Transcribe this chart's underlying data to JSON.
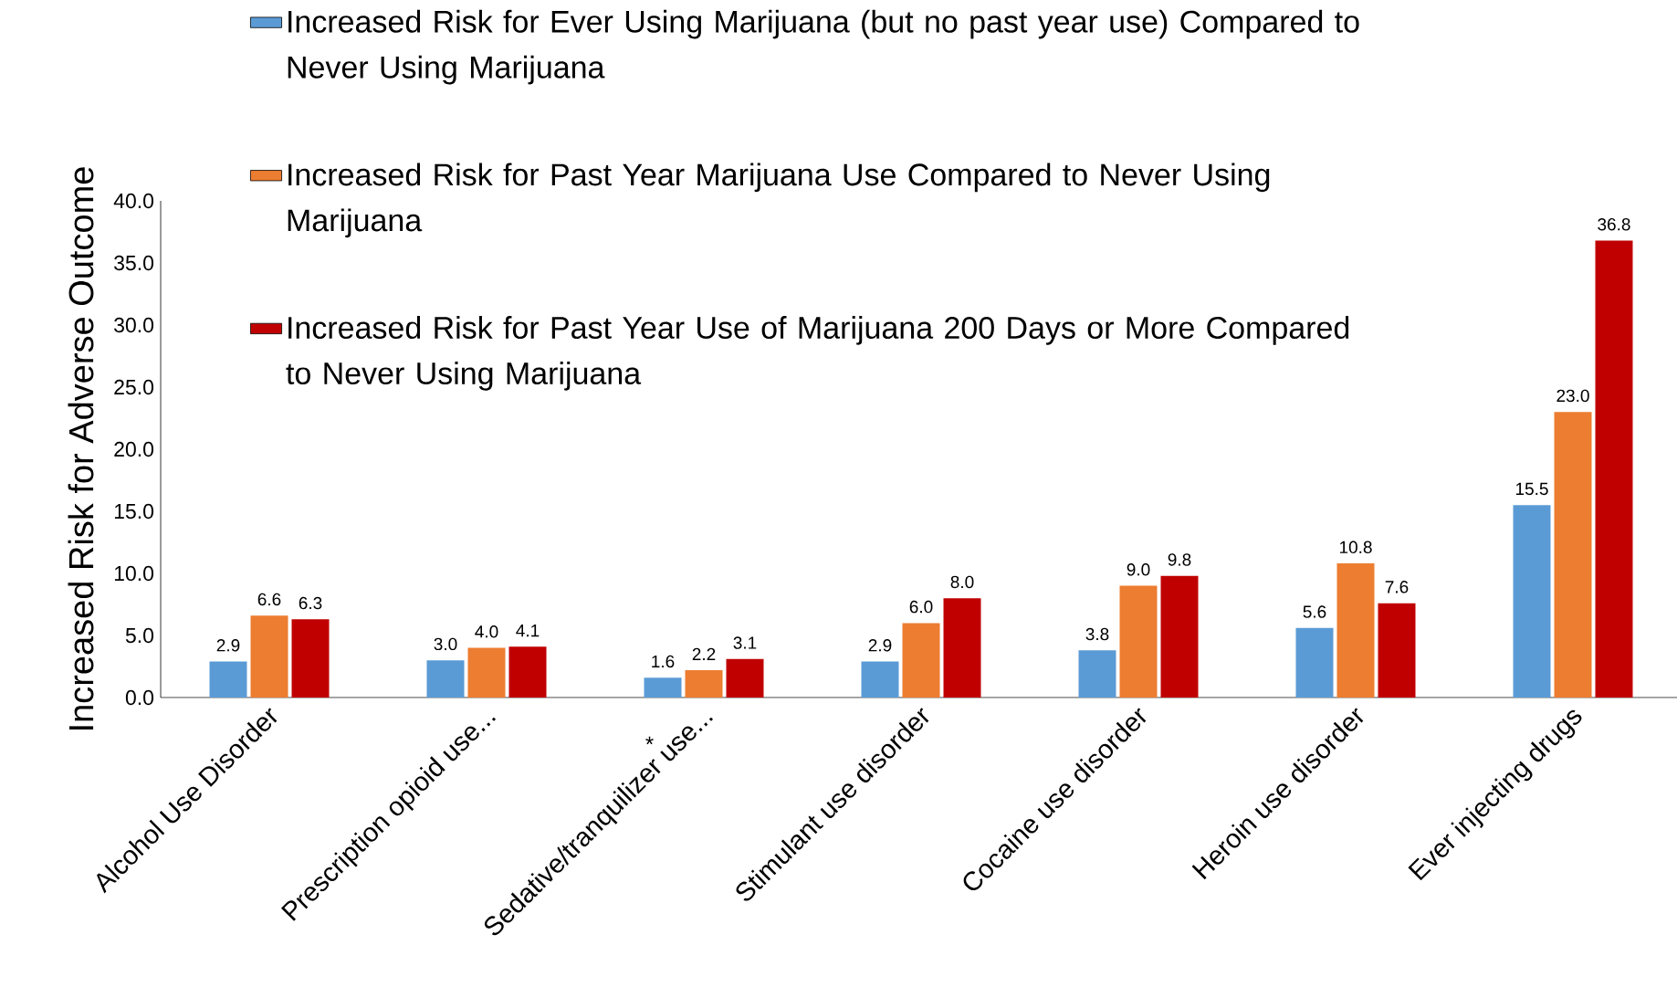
{
  "chart_data": {
    "type": "bar",
    "ylabel": "Increased Risk for Adverse Outcome",
    "categories": [
      "Alcohol Use Disorder",
      "Prescription opioid use...",
      "Sedative/tranquilizer use...",
      "Stimulant use disorder",
      "Cocaine use disorder",
      "Heroin use disorder",
      "Ever injecting drugs"
    ],
    "series": [
      {
        "name": "Increased Risk for Ever Using Marijuana (but no past year use) Compared to Never Using Marijuana",
        "color": "#5b9bd5",
        "values": [
          2.9,
          3.0,
          1.6,
          2.9,
          3.8,
          5.6,
          15.5
        ],
        "value_labels": [
          "2.9",
          "3.0",
          "1.6",
          "2.9",
          "3.8",
          "5.6",
          "15.5"
        ]
      },
      {
        "name": "Increased Risk for Past Year Marijuana Use Compared to Never Using Marijuana",
        "color": "#ed7d31",
        "values": [
          6.6,
          4.0,
          2.2,
          6.0,
          9.0,
          10.8,
          23.0
        ],
        "value_labels": [
          "6.6",
          "4.0",
          "2.2",
          "6.0",
          "9.0",
          "10.8",
          "23.0"
        ]
      },
      {
        "name": "Increased Risk for Past Year Use of Marijuana 200 Days or More Compared to Never Using Marijuana",
        "color": "#c00000",
        "values": [
          6.3,
          4.1,
          3.1,
          8.0,
          9.8,
          7.6,
          36.8
        ],
        "value_labels": [
          "6.3",
          "4.1",
          "3.1",
          "8.0",
          "9.8",
          "7.6",
          "36.8"
        ]
      }
    ],
    "ylim": [
      0,
      40
    ],
    "yticks": [
      {
        "value": 0,
        "label": "0.0"
      },
      {
        "value": 5,
        "label": "5.0"
      },
      {
        "value": 10,
        "label": "10.0"
      },
      {
        "value": 15,
        "label": "15.0"
      },
      {
        "value": 20,
        "label": "20.0"
      },
      {
        "value": 25,
        "label": "25.0"
      },
      {
        "value": 30,
        "label": "30.0"
      },
      {
        "value": 35,
        "label": "35.0"
      },
      {
        "value": 40,
        "label": "40.0"
      }
    ],
    "annotations": [
      "*"
    ],
    "legend": "top",
    "grid": false
  }
}
